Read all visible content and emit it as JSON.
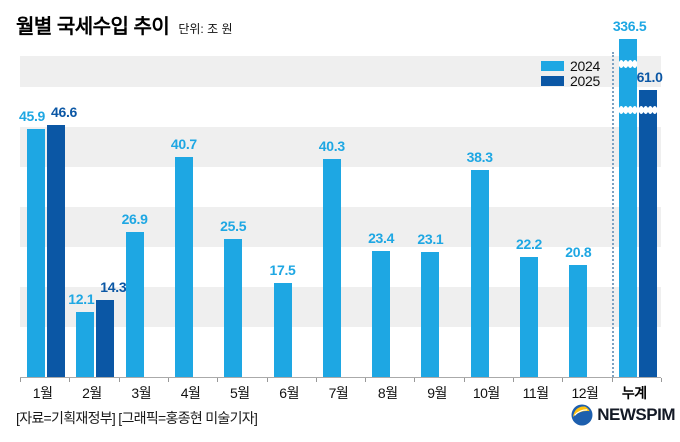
{
  "header": {
    "title": "월별 국세수입 추이",
    "unit": "단위: 조 원"
  },
  "chart_data": {
    "type": "bar",
    "title": "월별 국세수입 추이",
    "unit": "조 원",
    "categories": [
      "1월",
      "2월",
      "3월",
      "4월",
      "5월",
      "6월",
      "7월",
      "8월",
      "9월",
      "10월",
      "11월",
      "12월",
      "누계"
    ],
    "series": [
      {
        "name": "2024",
        "color": "#1ea7e3",
        "values": [
          45.9,
          12.1,
          26.9,
          40.7,
          25.5,
          17.5,
          40.3,
          23.4,
          23.1,
          38.3,
          22.2,
          20.8,
          336.5
        ]
      },
      {
        "name": "2025",
        "color": "#0b57a5",
        "values": [
          46.6,
          14.3,
          null,
          null,
          null,
          null,
          null,
          null,
          null,
          null,
          null,
          null,
          61.0
        ]
      }
    ],
    "legend_position": "top-right",
    "grid": "horizontal-striped-bands",
    "ylim": [
      0,
      59
    ],
    "notes": "누계(cumulative) bars are truncated with wavy axis-break marks; dotted vertical divider separates monthly bars from 누계"
  },
  "footer": {
    "credit": "[자료=기획재정부] [그래픽=홍종현 미술기자]",
    "logo_text": "NEWSPIM"
  },
  "colors": {
    "series_2024": "#1ea7e3",
    "series_2025": "#0b57a5",
    "band": "#efefef",
    "axis": "#aaaaaa",
    "tick": "#999999",
    "divider_dots": "#7fa3c2",
    "text": "#111111",
    "logo_blue": "#1d5fae",
    "logo_yellow": "#ffc20e"
  }
}
